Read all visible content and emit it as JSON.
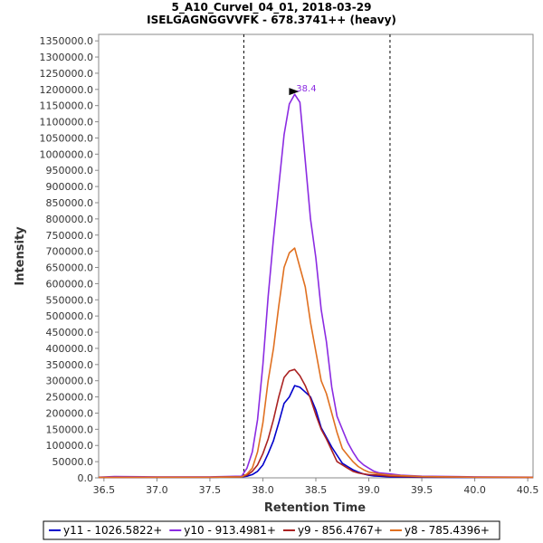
{
  "chart_data": {
    "type": "line",
    "title": "5_A10_CurveI_04_01, 2018-03-29",
    "subtitle": "ISELGAGNGGVVFK - 678.3741++ (heavy)",
    "xlabel": "Retention Time",
    "ylabel": "Intensity",
    "xlim": [
      36.45,
      40.55
    ],
    "ylim": [
      0,
      1370000
    ],
    "x_ticks": [
      36.5,
      37.0,
      37.5,
      38.0,
      38.5,
      39.0,
      39.5,
      40.0,
      40.5
    ],
    "x_tick_labels": [
      "36.5",
      "37.0",
      "37.5",
      "38.0",
      "38.5",
      "39.0",
      "39.5",
      "40.0",
      "40.5"
    ],
    "y_ticks": [
      0,
      50000,
      100000,
      150000,
      200000,
      250000,
      300000,
      350000,
      400000,
      450000,
      500000,
      550000,
      600000,
      650000,
      700000,
      750000,
      800000,
      850000,
      900000,
      950000,
      1000000,
      1050000,
      1100000,
      1150000,
      1200000,
      1250000,
      1300000,
      1350000
    ],
    "y_tick_labels": [
      "0.0",
      "50000.0",
      "100000.0",
      "150000.0",
      "200000.0",
      "250000.0",
      "300000.0",
      "350000.0",
      "400000.0",
      "450000.0",
      "500000.0",
      "550000.0",
      "600000.0",
      "650000.0",
      "700000.0",
      "750000.0",
      "800000.0",
      "850000.0",
      "900000.0",
      "950000.0",
      "1000000.0",
      "1050000.0",
      "1100000.0",
      "1150000.0",
      "1200000.0",
      "1250000.0",
      "1300000.0",
      "1350000.0"
    ],
    "integration_bounds": [
      37.82,
      39.2
    ],
    "peak_annotation": {
      "label": "38.4",
      "x": 38.35,
      "y": 1185000,
      "color": "#8b2be2"
    },
    "series": [
      {
        "name": "y11 - 1026.5822+",
        "color": "#0000cc",
        "x": [
          36.45,
          37.0,
          37.5,
          37.8,
          37.85,
          37.9,
          37.95,
          38.0,
          38.05,
          38.1,
          38.15,
          38.2,
          38.25,
          38.3,
          38.35,
          38.4,
          38.45,
          38.5,
          38.55,
          38.6,
          38.65,
          38.7,
          38.75,
          38.8,
          38.85,
          38.9,
          38.95,
          39.0,
          39.05,
          39.1,
          39.2,
          39.5,
          40.0,
          40.55
        ],
        "y": [
          1500,
          2000,
          2000,
          3000,
          5000,
          10000,
          20000,
          40000,
          75000,
          115000,
          170000,
          230000,
          250000,
          285000,
          280000,
          265000,
          250000,
          210000,
          155000,
          125000,
          95000,
          70000,
          45000,
          35000,
          25000,
          18000,
          12000,
          8000,
          6000,
          5000,
          3000,
          2000,
          1500,
          1000
        ]
      },
      {
        "name": "y10 - 913.4981+",
        "color": "#8b2be2",
        "x": [
          36.45,
          36.6,
          37.0,
          37.5,
          37.8,
          37.85,
          37.9,
          37.95,
          38.0,
          38.05,
          38.1,
          38.15,
          38.2,
          38.25,
          38.3,
          38.35,
          38.4,
          38.45,
          38.5,
          38.55,
          38.6,
          38.65,
          38.7,
          38.75,
          38.8,
          38.85,
          38.9,
          38.95,
          39.0,
          39.05,
          39.1,
          39.2,
          39.3,
          39.5,
          40.0,
          40.55
        ],
        "y": [
          2000,
          4000,
          3000,
          3000,
          5000,
          30000,
          80000,
          180000,
          350000,
          560000,
          740000,
          900000,
          1060000,
          1155000,
          1185000,
          1160000,
          980000,
          800000,
          680000,
          520000,
          420000,
          280000,
          190000,
          150000,
          110000,
          80000,
          55000,
          40000,
          30000,
          20000,
          15000,
          12000,
          8000,
          5000,
          3000,
          2000
        ]
      },
      {
        "name": "y9 - 856.4767+",
        "color": "#aa2222",
        "x": [
          36.45,
          37.0,
          37.5,
          37.8,
          37.85,
          37.9,
          37.95,
          38.0,
          38.05,
          38.1,
          38.15,
          38.2,
          38.25,
          38.3,
          38.35,
          38.4,
          38.45,
          38.5,
          38.55,
          38.6,
          38.65,
          38.7,
          38.75,
          38.8,
          38.85,
          38.9,
          38.95,
          39.0,
          39.1,
          39.2,
          39.5,
          40.0,
          40.55
        ],
        "y": [
          1500,
          2000,
          2000,
          3000,
          8000,
          20000,
          40000,
          75000,
          120000,
          180000,
          250000,
          310000,
          330000,
          335000,
          315000,
          285000,
          245000,
          195000,
          150000,
          120000,
          85000,
          50000,
          40000,
          30000,
          20000,
          15000,
          12000,
          10000,
          8000,
          5000,
          3000,
          2000,
          1500
        ]
      },
      {
        "name": "y8 - 785.4396+",
        "color": "#e07020",
        "x": [
          36.45,
          37.0,
          37.5,
          37.8,
          37.85,
          37.9,
          37.95,
          38.0,
          38.05,
          38.1,
          38.15,
          38.2,
          38.25,
          38.3,
          38.35,
          38.4,
          38.45,
          38.5,
          38.55,
          38.6,
          38.65,
          38.7,
          38.75,
          38.8,
          38.85,
          38.9,
          38.95,
          39.0,
          39.1,
          39.2,
          39.5,
          40.0,
          40.55
        ],
        "y": [
          1500,
          2000,
          2000,
          3000,
          12000,
          30000,
          80000,
          170000,
          300000,
          400000,
          530000,
          650000,
          695000,
          710000,
          650000,
          590000,
          480000,
          390000,
          300000,
          260000,
          200000,
          140000,
          90000,
          70000,
          50000,
          35000,
          25000,
          18000,
          12000,
          8000,
          4000,
          2000,
          1500
        ]
      }
    ]
  }
}
